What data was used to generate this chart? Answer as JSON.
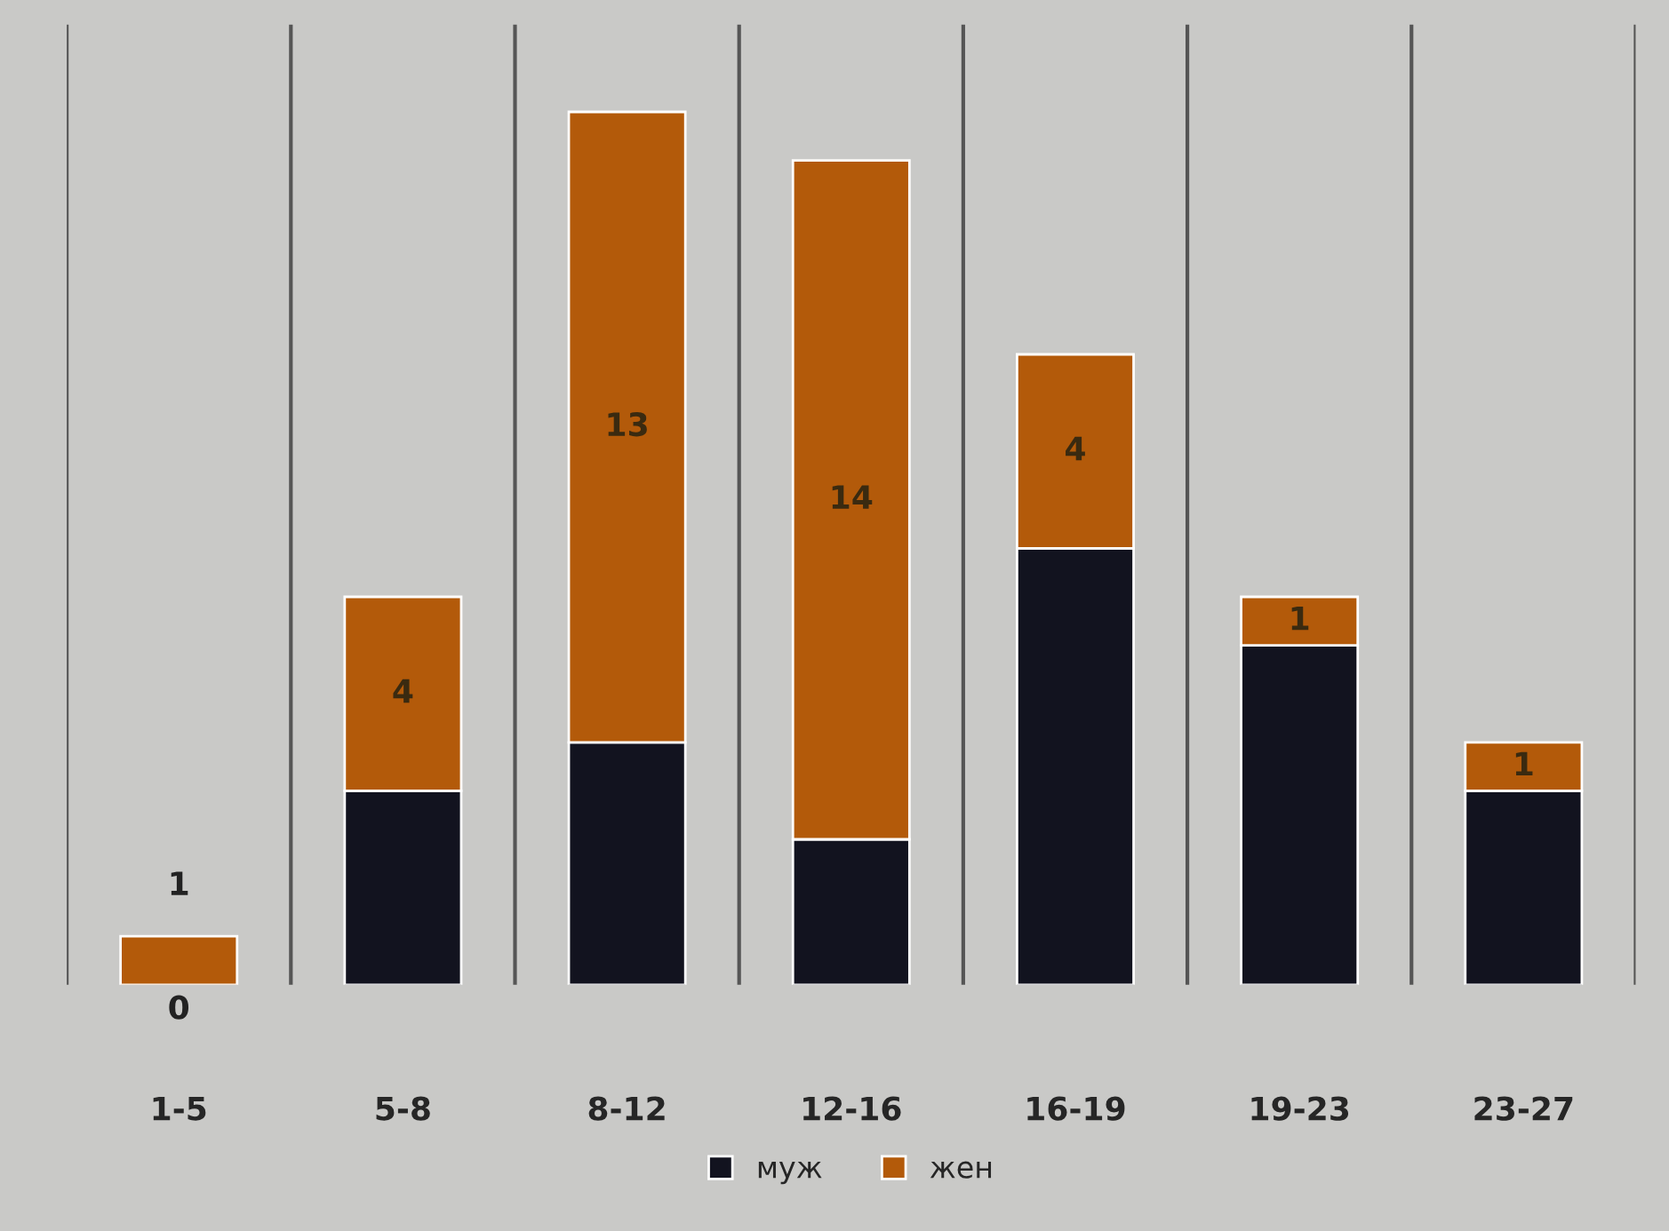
{
  "chart_data": {
    "type": "bar",
    "stacked": true,
    "categories": [
      "1-5",
      "5-8",
      "8-12",
      "12-16",
      "16-19",
      "19-23",
      "23-27"
    ],
    "series": [
      {
        "name": "муж",
        "color": "#12131f",
        "values": [
          0,
          4,
          5,
          3,
          9,
          7,
          4
        ],
        "value_labels": [
          "0",
          null,
          null,
          null,
          null,
          null,
          null
        ]
      },
      {
        "name": "жен",
        "color": "#b35a0a",
        "values": [
          1,
          4,
          13,
          14,
          4,
          1,
          1
        ],
        "value_labels": [
          "1",
          "4",
          "13",
          "14",
          "4",
          "1",
          "1"
        ]
      }
    ],
    "grid": "x",
    "legend": "bottom"
  }
}
